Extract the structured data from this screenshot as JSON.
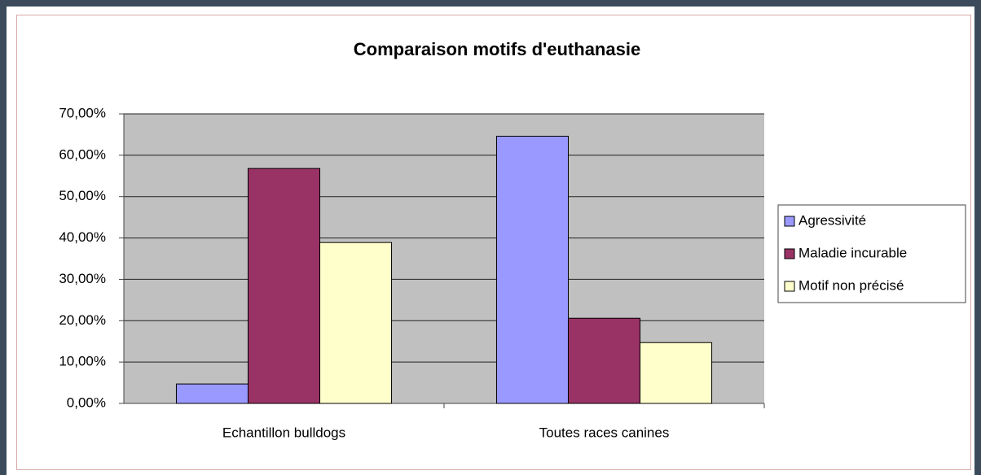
{
  "chart_data": {
    "type": "bar",
    "title": "Comparaison motifs d'euthanasie",
    "categories": [
      "Echantillon bulldogs",
      "Toutes races canines"
    ],
    "series": [
      {
        "name": "Agressivité",
        "color": "#9999ff",
        "values": [
          4.7,
          64.6
        ]
      },
      {
        "name": "Maladie incurable",
        "color": "#993366",
        "values": [
          56.8,
          20.6
        ]
      },
      {
        "name": "Motif non précisé",
        "color": "#ffffcc",
        "values": [
          38.9,
          14.7
        ]
      }
    ],
    "ylim": [
      0,
      70
    ],
    "yticks": [
      {
        "value": 0,
        "label": "0,00%"
      },
      {
        "value": 10,
        "label": "10,00%"
      },
      {
        "value": 20,
        "label": "20,00%"
      },
      {
        "value": 30,
        "label": "30,00%"
      },
      {
        "value": 40,
        "label": "40,00%"
      },
      {
        "value": 50,
        "label": "50,00%"
      },
      {
        "value": 60,
        "label": "60,00%"
      },
      {
        "value": 70,
        "label": "70,00%"
      }
    ],
    "grid": true,
    "legend": "right",
    "plot_background": "#c0c0c0"
  }
}
